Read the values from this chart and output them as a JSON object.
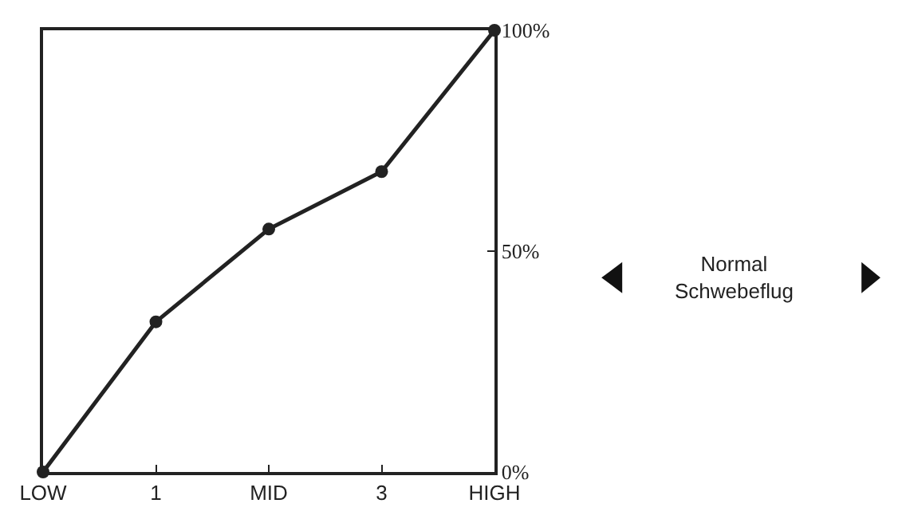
{
  "chart_data": {
    "type": "line",
    "categories": [
      "LOW",
      "1",
      "MID",
      "3",
      "HIGH"
    ],
    "series": [
      {
        "color": "#222222",
        "values": [
          0,
          34,
          55,
          68,
          100
        ]
      }
    ],
    "ylim": [
      0,
      100
    ],
    "yticks": [
      {
        "value": 0,
        "label": "0%"
      },
      {
        "value": 50,
        "label": "50%"
      },
      {
        "value": 100,
        "label": "100%"
      }
    ],
    "marker": "circle",
    "line_style": "solid",
    "annotations": [
      "Normal\nSchwebeflug"
    ]
  }
}
